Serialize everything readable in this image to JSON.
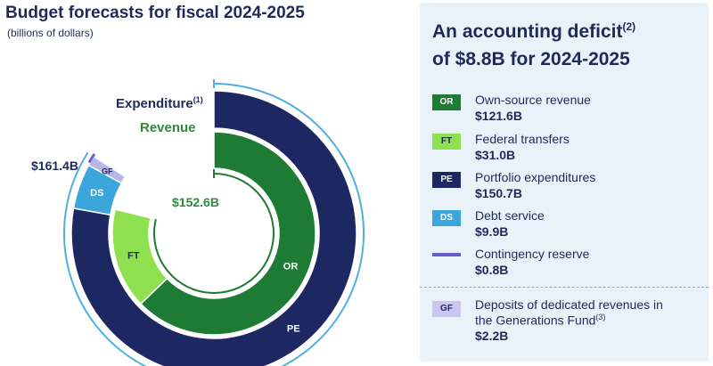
{
  "title": "Budget forecasts for fiscal 2024-2025",
  "subtitle": "(billions of dollars)",
  "chart_data": {
    "type": "donut",
    "title": "Budget forecasts for fiscal 2024-2025",
    "subtitle": "(billions of dollars)",
    "series": [
      {
        "name": "Expenditure",
        "note": "(1)",
        "total": 161.4,
        "total_label": "$161.4B",
        "segments": [
          {
            "code": "PE",
            "value": 150.7
          },
          {
            "code": "DS",
            "value": 9.9
          },
          {
            "code": "GF",
            "value": 2.2
          }
        ]
      },
      {
        "name": "Revenue",
        "total": 152.6,
        "total_label": "$152.6B",
        "segments": [
          {
            "code": "OR",
            "value": 121.6
          },
          {
            "code": "FT",
            "value": 31.0
          }
        ]
      }
    ],
    "colors": {
      "OR": "#1e7b34",
      "FT": "#8ee04e",
      "PE": "#1d2762",
      "DS": "#3aa6dc",
      "GF": "#b7b4e6",
      "CR": "#6a5acd",
      "expenditure_text": "#1f2a5a",
      "revenue_text": "#2e8b3a",
      "bracket": "#4fb0e0"
    }
  },
  "panel": {
    "title_line1": "An accounting deficit",
    "title_note": "(2)",
    "title_line2": "of $8.8B for 2024-2025",
    "legend": [
      {
        "code": "OR",
        "label": "Own-source revenue",
        "value": "$121.6B"
      },
      {
        "code": "FT",
        "label": "Federal transfers",
        "value": "$31.0B"
      },
      {
        "code": "PE",
        "label": "Portfolio expenditures",
        "value": "$150.7B"
      },
      {
        "code": "DS",
        "label": "Debt service",
        "value": "$9.9B"
      },
      {
        "code": "",
        "label": "Contingency reserve",
        "value": "$0.8B"
      }
    ],
    "gf": {
      "code": "GF",
      "label_line1": "Deposits of dedicated revenues in",
      "label_line2": "the Generations Fund",
      "note": "(3)",
      "value": "$2.2B"
    }
  }
}
